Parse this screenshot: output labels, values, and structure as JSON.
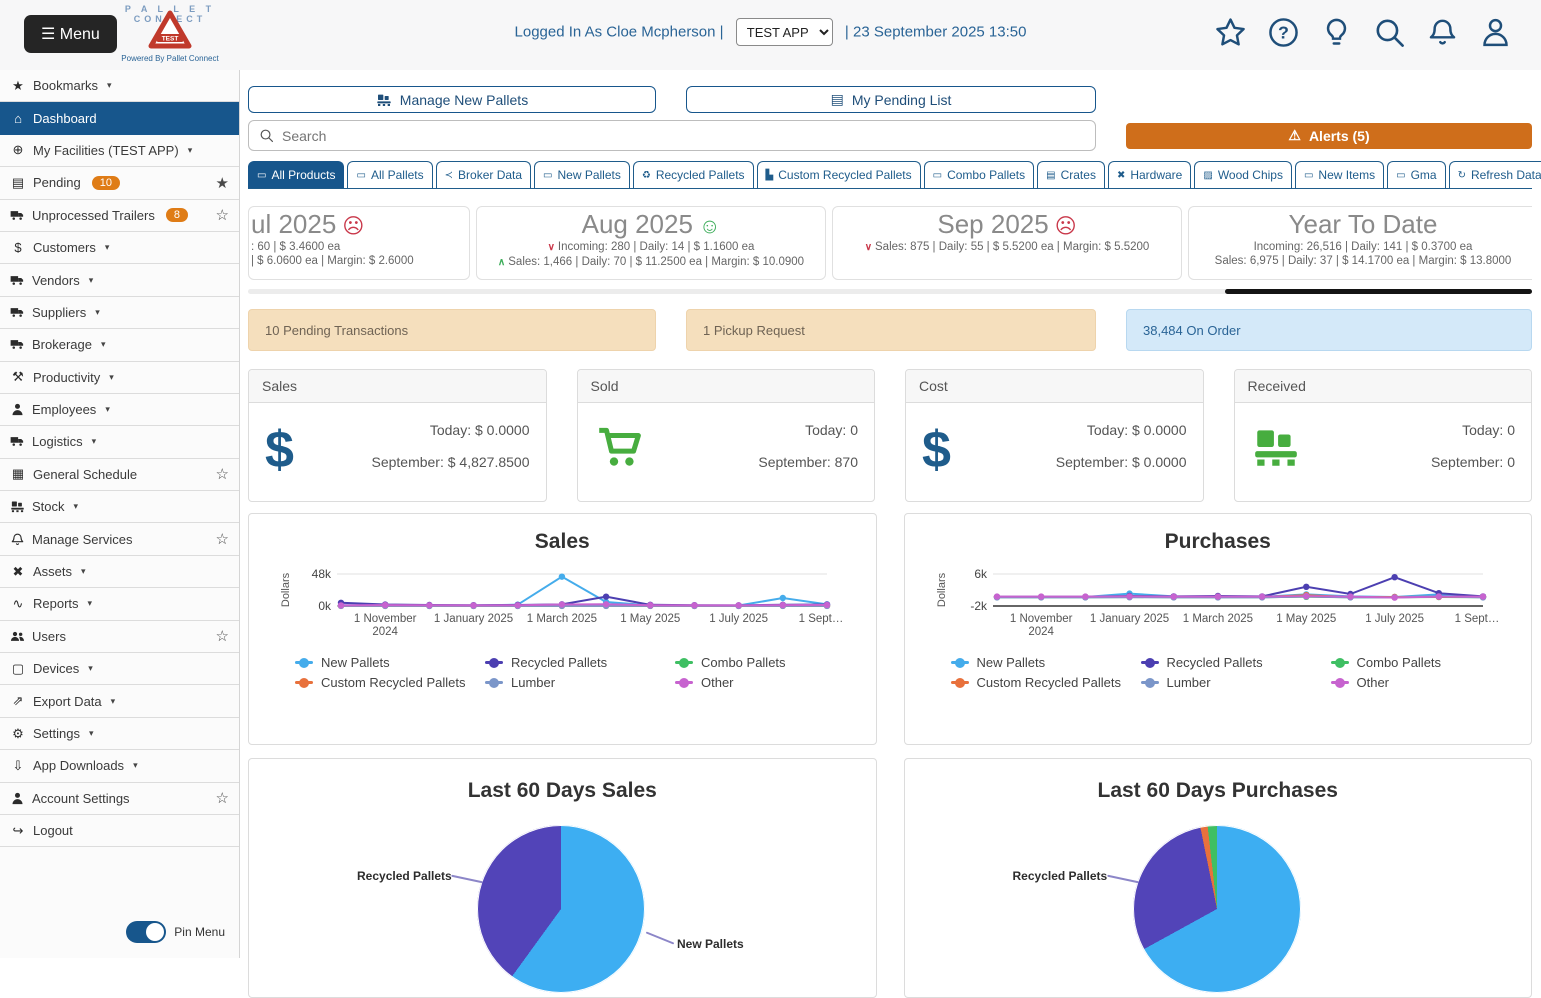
{
  "header": {
    "menu_label": "Menu",
    "logo": {
      "line1": "P A L L E T",
      "line2": "CONNECT",
      "badge": "TEST",
      "powered_by": "Powered By Pallet Connect"
    },
    "logged_in": "Logged In As Cloe Mcpherson",
    "sep": "|",
    "app_select": "TEST APP",
    "datetime": "23 September 2025 13:50"
  },
  "icons": {
    "menu": "☰",
    "star": "★",
    "star_outline": "☆",
    "house": "⌂",
    "globe": "⊕",
    "clipboard": "▤",
    "dollar": "$",
    "hammer": "⚒",
    "calendar": "▦",
    "assets": "✖",
    "reports": "∿",
    "monitor": "▢",
    "export": "⇗",
    "gear": "⚙",
    "download": "⇩",
    "logout": "↪",
    "caret": "▾",
    "recycle": "♻",
    "pallet_flat": "▭",
    "crates": "▤",
    "woodchips": "▨",
    "broker": "≺",
    "chart_bars": "▙",
    "refresh": "↻",
    "warning": "⚠",
    "happy": "☺",
    "sad": "☹",
    "up": "∧",
    "down": "∨"
  },
  "sidebar": {
    "items": [
      {
        "label": "Bookmarks",
        "icon": "star",
        "caret": true
      },
      {
        "label": "Dashboard",
        "icon": "house",
        "active": true
      },
      {
        "label": "My Facilities (TEST APP)",
        "icon": "globe",
        "caret": true
      },
      {
        "label": "Pending",
        "icon": "clipboard",
        "badge": "10",
        "right": "star-filled"
      },
      {
        "label": "Unprocessed Trailers",
        "icon": "svg:truck",
        "badge": "8",
        "right": "star-outline"
      },
      {
        "label": "Customers",
        "icon": "dollar",
        "caret": true
      },
      {
        "label": "Vendors",
        "icon": "svg:truck",
        "caret": true
      },
      {
        "label": "Suppliers",
        "icon": "svg:truck",
        "caret": true
      },
      {
        "label": "Brokerage",
        "icon": "svg:truck",
        "caret": true
      },
      {
        "label": "Productivity",
        "icon": "hammer",
        "caret": true
      },
      {
        "label": "Employees",
        "icon": "svg:person",
        "caret": true
      },
      {
        "label": "Logistics",
        "icon": "svg:truck",
        "caret": true
      },
      {
        "label": "General Schedule",
        "icon": "calendar",
        "right": "star-outline"
      },
      {
        "label": "Stock",
        "icon": "svg:pallet",
        "caret": true
      },
      {
        "label": "Manage Services",
        "icon": "svg:bell",
        "right": "star-outline"
      },
      {
        "label": "Assets",
        "icon": "assets",
        "caret": true
      },
      {
        "label": "Reports",
        "icon": "reports",
        "caret": true
      },
      {
        "label": "Users",
        "icon": "svg:users",
        "right": "star-outline"
      },
      {
        "label": "Devices",
        "icon": "monitor",
        "caret": true
      },
      {
        "label": "Export Data",
        "icon": "export",
        "caret": true
      },
      {
        "label": "Settings",
        "icon": "gear",
        "caret": true
      },
      {
        "label": "App Downloads",
        "icon": "download",
        "caret": true
      },
      {
        "label": "Account Settings",
        "icon": "svg:person",
        "right": "star-outline"
      },
      {
        "label": "Logout",
        "icon": "logout"
      }
    ],
    "pin_menu": "Pin Menu"
  },
  "toolbar": {
    "manage_new_pallets": "Manage New Pallets",
    "my_pending_list": "My Pending List",
    "search_placeholder": "Search",
    "alerts": "Alerts (5)"
  },
  "tabs": {
    "items": [
      {
        "label": "All Products",
        "icon": "pallet_flat",
        "active": true
      },
      {
        "label": "All Pallets",
        "icon": "pallet_flat"
      },
      {
        "label": "Broker Data",
        "icon": "broker"
      },
      {
        "label": "New Pallets",
        "icon": "pallet_flat"
      },
      {
        "label": "Recycled Pallets",
        "icon": "recycle"
      },
      {
        "label": "Custom Recycled Pallets",
        "icon": "chart_bars"
      },
      {
        "label": "Combo Pallets",
        "icon": "pallet_flat"
      },
      {
        "label": "Crates",
        "icon": "crates"
      },
      {
        "label": "Hardware",
        "icon": "assets"
      },
      {
        "label": "Wood Chips",
        "icon": "woodchips"
      },
      {
        "label": "New Items",
        "icon": "pallet_flat"
      },
      {
        "label": "Gma",
        "icon": "pallet_flat"
      }
    ],
    "refresh": {
      "label": "Refresh Data",
      "icon": "refresh"
    }
  },
  "month_cards": [
    {
      "title": "ul 2025",
      "mood": "sad",
      "clipped": true,
      "lines": [
        {
          "dir": null,
          "text": ": 60 | $ 3.4600 ea"
        },
        {
          "dir": null,
          "text": "| $ 6.0600 ea | Margin: $ 2.6000"
        }
      ]
    },
    {
      "title": "Aug 2025",
      "mood": "happy",
      "lines": [
        {
          "dir": "down",
          "text": "Incoming: 280 | Daily: 14 | $ 1.1600 ea"
        },
        {
          "dir": "up",
          "text": "Sales: 1,466 | Daily: 70 | $ 11.2500 ea | Margin: $ 10.0900"
        }
      ]
    },
    {
      "title": "Sep 2025",
      "mood": "sad",
      "lines": [
        {
          "dir": "down",
          "text": "Sales: 875 | Daily: 55 | $ 5.5200 ea | Margin: $ 5.5200"
        }
      ]
    },
    {
      "title": "Year To Date",
      "mood": null,
      "lines": [
        {
          "dir": null,
          "text": "Incoming: 26,516 | Daily: 141 | $ 0.3700 ea"
        },
        {
          "dir": null,
          "text": "Sales: 6,975 | Daily: 37 | $ 14.1700 ea | Margin: $ 13.8000"
        }
      ]
    }
  ],
  "banners": [
    {
      "text": "10 Pending Transactions",
      "style": "tan"
    },
    {
      "text": "1 Pickup Request",
      "style": "tan"
    },
    {
      "text": "38,484 On Order",
      "style": "blue"
    }
  ],
  "stat_cards": [
    {
      "title": "Sales",
      "icon": "dollar",
      "rows": [
        {
          "k": "Today:",
          "v": "$ 0.0000"
        },
        {
          "k": "September:",
          "v": "$ 4,827.8500"
        }
      ]
    },
    {
      "title": "Sold",
      "icon": "cart",
      "rows": [
        {
          "k": "Today:",
          "v": "0"
        },
        {
          "k": "September:",
          "v": "870"
        }
      ]
    },
    {
      "title": "Cost",
      "icon": "dollar",
      "rows": [
        {
          "k": "Today:",
          "v": "$ 0.0000"
        },
        {
          "k": "September:",
          "v": "$ 0.0000"
        }
      ]
    },
    {
      "title": "Received",
      "icon": "pallet",
      "rows": [
        {
          "k": "Today:",
          "v": "0"
        },
        {
          "k": "September:",
          "v": "0"
        }
      ]
    }
  ],
  "chart_data": [
    {
      "id": "sales-line",
      "type": "line",
      "title": "Sales",
      "ylabel": "Dollars",
      "ylim": [
        0,
        48000
      ],
      "axis_value": 0,
      "axis_color": "#bbbbbb",
      "grid": true,
      "yticks": [
        {
          "label": "48k",
          "value": 48000
        },
        {
          "label": "0k",
          "value": 0
        }
      ],
      "x": [
        "1 Oct 2024",
        "1 Nov 2024",
        "1 Dec 2024",
        "1 Jan 2025",
        "1 Feb 2025",
        "1 Mar 2025",
        "1 Apr 2025",
        "1 May 2025",
        "1 Jun 2025",
        "1 Jul 2025",
        "1 Aug 2025",
        "1 Sep 2025"
      ],
      "xticks": [
        {
          "index": 1,
          "lines": [
            "1 November",
            "2024"
          ]
        },
        {
          "index": 3,
          "lines": [
            "1 January 2025"
          ]
        },
        {
          "index": 5,
          "lines": [
            "1 March 2025"
          ]
        },
        {
          "index": 7,
          "lines": [
            "1 May 2025"
          ]
        },
        {
          "index": 9,
          "lines": [
            "1 July 2025"
          ]
        },
        {
          "index": 11,
          "lines": [
            "1 Sept…"
          ]
        }
      ],
      "series": [
        {
          "name": "New Pallets",
          "color": "#45aceb",
          "values": [
            1200,
            900,
            800,
            700,
            2000,
            44000,
            6000,
            900,
            800,
            700,
            12000,
            2500
          ]
        },
        {
          "name": "Recycled Pallets",
          "color": "#4c3fb1",
          "values": [
            4800,
            2200,
            1500,
            1200,
            1500,
            2500,
            14000,
            1800,
            1200,
            1000,
            1800,
            2200
          ]
        },
        {
          "name": "Combo Pallets",
          "color": "#3fbf63",
          "values": [
            400,
            350,
            300,
            300,
            300,
            400,
            500,
            350,
            300,
            300,
            350,
            400
          ]
        },
        {
          "name": "Custom Recycled Pallets",
          "color": "#e8713c",
          "values": [
            250,
            200,
            200,
            200,
            200,
            300,
            300,
            250,
            200,
            200,
            250,
            250
          ]
        },
        {
          "name": "Lumber",
          "color": "#7b96c9",
          "values": [
            150,
            120,
            100,
            100,
            100,
            150,
            200,
            150,
            100,
            100,
            150,
            150
          ]
        },
        {
          "name": "Other",
          "color": "#c763cf",
          "values": [
            900,
            1400,
            1100,
            900,
            1100,
            2200,
            2600,
            1200,
            1000,
            1000,
            1300,
            1600
          ]
        }
      ],
      "legend_position": "bottom"
    },
    {
      "id": "purchases-line",
      "type": "line",
      "title": "Purchases",
      "ylabel": "Dollars",
      "ylim": [
        -2000,
        6000
      ],
      "axis_value": -2000,
      "axis_color": "#333333",
      "grid": true,
      "yticks": [
        {
          "label": "6k",
          "value": 6000
        },
        {
          "label": "-2k",
          "value": -2000
        }
      ],
      "x": [
        "1 Oct 2024",
        "1 Nov 2024",
        "1 Dec 2024",
        "1 Jan 2025",
        "1 Feb 2025",
        "1 Mar 2025",
        "1 Apr 2025",
        "1 May 2025",
        "1 Jun 2025",
        "1 Jul 2025",
        "1 Aug 2025",
        "1 Sep 2025"
      ],
      "xticks": [
        {
          "index": 1,
          "lines": [
            "1 November",
            "2024"
          ]
        },
        {
          "index": 3,
          "lines": [
            "1 January 2025"
          ]
        },
        {
          "index": 5,
          "lines": [
            "1 March 2025"
          ]
        },
        {
          "index": 7,
          "lines": [
            "1 May 2025"
          ]
        },
        {
          "index": 9,
          "lines": [
            "1 July 2025"
          ]
        },
        {
          "index": 11,
          "lines": [
            "1 Sept…"
          ]
        }
      ],
      "series": [
        {
          "name": "New Pallets",
          "color": "#45aceb",
          "values": [
            250,
            250,
            250,
            1100,
            400,
            300,
            300,
            900,
            400,
            250,
            900,
            300
          ]
        },
        {
          "name": "Recycled Pallets",
          "color": "#4c3fb1",
          "values": [
            300,
            300,
            300,
            500,
            400,
            500,
            400,
            2800,
            1000,
            5200,
            1200,
            400
          ]
        },
        {
          "name": "Combo Pallets",
          "color": "#3fbf63",
          "values": [
            200,
            200,
            200,
            250,
            200,
            200,
            200,
            300,
            200,
            200,
            250,
            200
          ]
        },
        {
          "name": "Custom Recycled Pallets",
          "color": "#e8713c",
          "values": [
            250,
            250,
            250,
            300,
            250,
            250,
            250,
            700,
            250,
            250,
            300,
            250
          ]
        },
        {
          "name": "Lumber",
          "color": "#7b96c9",
          "values": [
            150,
            150,
            150,
            200,
            150,
            150,
            150,
            400,
            150,
            150,
            400,
            150
          ]
        },
        {
          "name": "Other",
          "color": "#c763cf",
          "values": [
            350,
            350,
            350,
            400,
            350,
            350,
            350,
            450,
            350,
            100,
            350,
            350
          ]
        }
      ],
      "legend_position": "bottom"
    },
    {
      "id": "sales-pie",
      "type": "pie",
      "title": "Last 60 Days Sales",
      "slices": [
        {
          "name": "New Pallets",
          "color": "#3daef2",
          "pct": 60
        },
        {
          "name": "Recycled Pallets",
          "color": "#5244b8",
          "pct": 40
        }
      ],
      "labels": [
        {
          "text": "Recycled Pallets",
          "pos": "left"
        },
        {
          "text": "New Pallets",
          "pos": "right"
        }
      ]
    },
    {
      "id": "purchases-pie",
      "type": "pie",
      "title": "Last 60 Days Purchases",
      "slices": [
        {
          "name": "New Pallets",
          "color": "#3daef2",
          "pct": 67
        },
        {
          "name": "Recycled Pallets",
          "color": "#5244b8",
          "pct": 29.8
        },
        {
          "name": "Custom Recycled Pallets",
          "color": "#e8713c",
          "pct": 1.4
        },
        {
          "name": "Combo Pallets",
          "color": "#3fbf63",
          "pct": 1.8
        }
      ],
      "labels": [
        {
          "text": "Recycled Pallets",
          "pos": "left"
        }
      ]
    }
  ]
}
